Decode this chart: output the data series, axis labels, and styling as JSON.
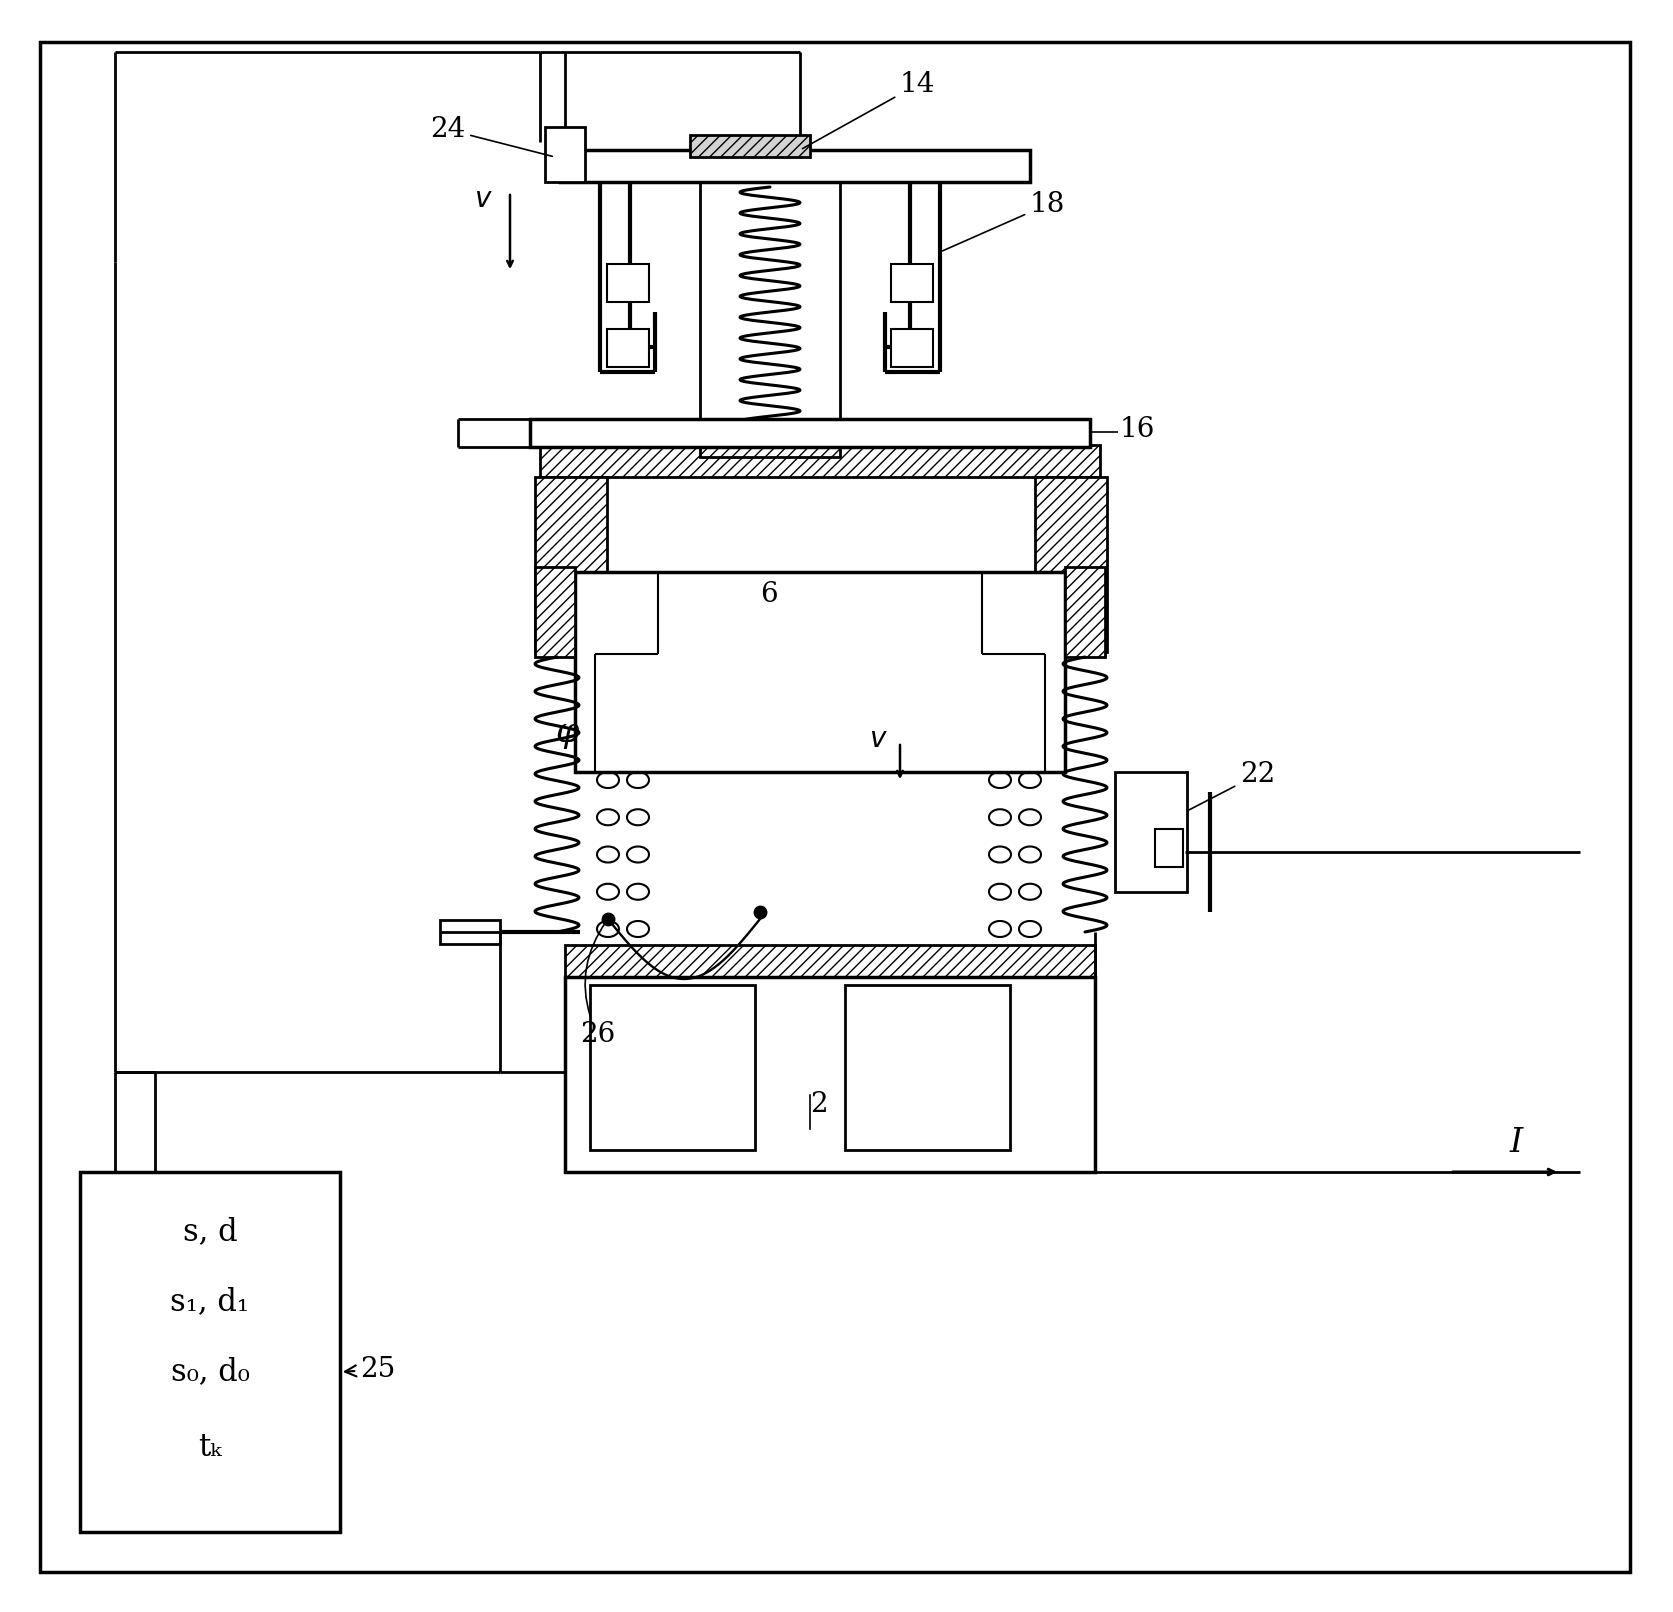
{
  "fig_w": 16.73,
  "fig_h": 16.12,
  "lw": 2.0,
  "blw": 2.5,
  "fs": 20,
  "box25_lines": [
    "s, d",
    "s₁, d₁",
    "s₀, d₀",
    "tₖ"
  ],
  "colors": {
    "bg": "#ffffff",
    "line": "#000000",
    "hatch_fc": "#ffffff"
  }
}
